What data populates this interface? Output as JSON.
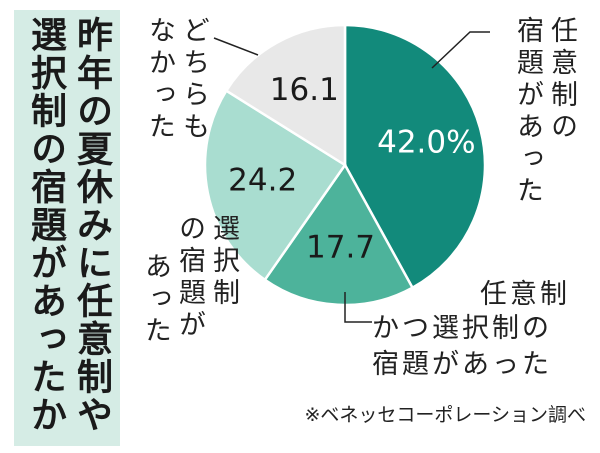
{
  "chart_data": {
    "type": "pie",
    "title": "昨年の夏休みに任意制や選択制の宿題があったか",
    "categories": [
      [
        "任意制の",
        "宿題があった"
      ],
      [
        "任意制",
        "かつ選択制の",
        "宿題があった"
      ],
      [
        "選択制",
        "の宿題が",
        "あった"
      ],
      [
        "どちらも",
        "なかった"
      ]
    ],
    "values": [
      42.0,
      17.7,
      24.2,
      16.1
    ],
    "value_labels": [
      "42.0%",
      "17.7",
      "24.2",
      "16.1"
    ],
    "colors": [
      "#128a7b",
      "#4db39b",
      "#a9ddd0",
      "#e8e8e8"
    ],
    "label_colors": [
      "#ffffff",
      "#1a1a1a",
      "#1a1a1a",
      "#1a1a1a"
    ],
    "source": "※ベネッセコーポレーション調べ"
  }
}
